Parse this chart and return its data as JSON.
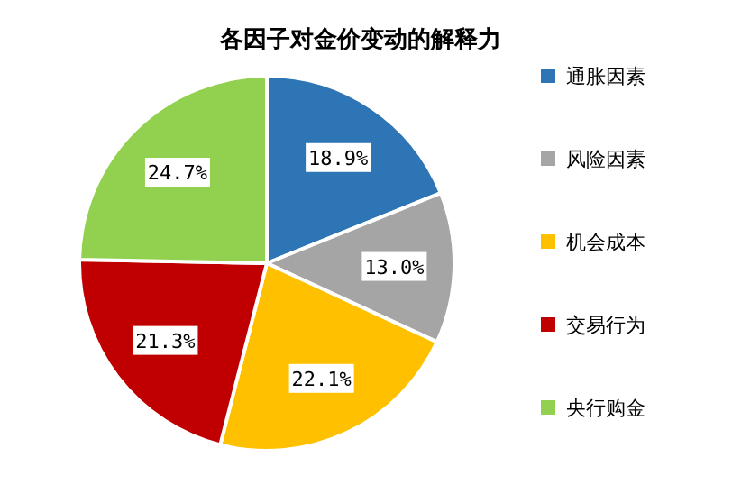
{
  "chart_data": {
    "type": "pie",
    "title": "各因子对金价变动的解释力",
    "categories": [
      "通胀因素",
      "风险因素",
      "机会成本",
      "交易行为",
      "央行购金"
    ],
    "values": [
      18.9,
      13.0,
      22.1,
      21.3,
      24.7
    ],
    "colors": [
      "#2e75b6",
      "#a5a5a5",
      "#ffc000",
      "#c00000",
      "#92d050"
    ],
    "value_labels": [
      "18.9%",
      "13.0%",
      "22.1%",
      "21.3%",
      "24.7%"
    ],
    "legend": "right"
  }
}
